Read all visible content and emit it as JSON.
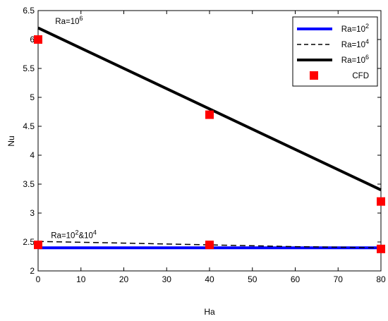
{
  "chart_data": {
    "type": "line",
    "xlabel": "Ha",
    "ylabel": "Nu",
    "xlim": [
      0,
      80
    ],
    "ylim": [
      2,
      6.5
    ],
    "xticks": [
      0,
      10,
      20,
      30,
      40,
      50,
      60,
      70,
      80
    ],
    "yticks": [
      2,
      2.5,
      3,
      3.5,
      4,
      4.5,
      5,
      5.5,
      6,
      6.5
    ],
    "xtick_labels": [
      "0",
      "10",
      "20",
      "30",
      "40",
      "50",
      "60",
      "70",
      "80"
    ],
    "ytick_labels": [
      "2",
      "2.5",
      "3",
      "3.5",
      "4",
      "4.5",
      "5",
      "5.5",
      "6",
      "6.5"
    ],
    "grid": false,
    "legend_position": "top-right",
    "series": [
      {
        "name_base": "Ra=10",
        "name_sup": "2",
        "style": "solid",
        "color": "#0000ff",
        "x": [
          0,
          80
        ],
        "y": [
          2.4,
          2.4
        ]
      },
      {
        "name_base": "Ra=10",
        "name_sup": "4",
        "style": "dashed",
        "color": "#000000",
        "x": [
          0,
          20,
          40,
          60,
          80
        ],
        "y": [
          2.51,
          2.48,
          2.45,
          2.42,
          2.4
        ]
      },
      {
        "name_base": "Ra=10",
        "name_sup": "6",
        "style": "solid-thick",
        "color": "#000000",
        "x": [
          0,
          80
        ],
        "y": [
          6.2,
          3.4
        ]
      },
      {
        "name": "CFD",
        "style": "marker-square",
        "color": "#ff0000",
        "x": [
          0,
          0,
          40,
          40,
          80,
          80
        ],
        "y": [
          6.0,
          2.45,
          4.7,
          2.45,
          3.2,
          2.38
        ]
      }
    ],
    "annotations": [
      {
        "base1": "Ra=10",
        "sup1": "6",
        "base2": "",
        "sup2": "",
        "x": 4,
        "y": 6.27
      },
      {
        "base1": "Ra=10",
        "sup1": "2",
        "base2": "&10",
        "sup2": "4",
        "x": 3,
        "y": 2.57
      }
    ]
  }
}
